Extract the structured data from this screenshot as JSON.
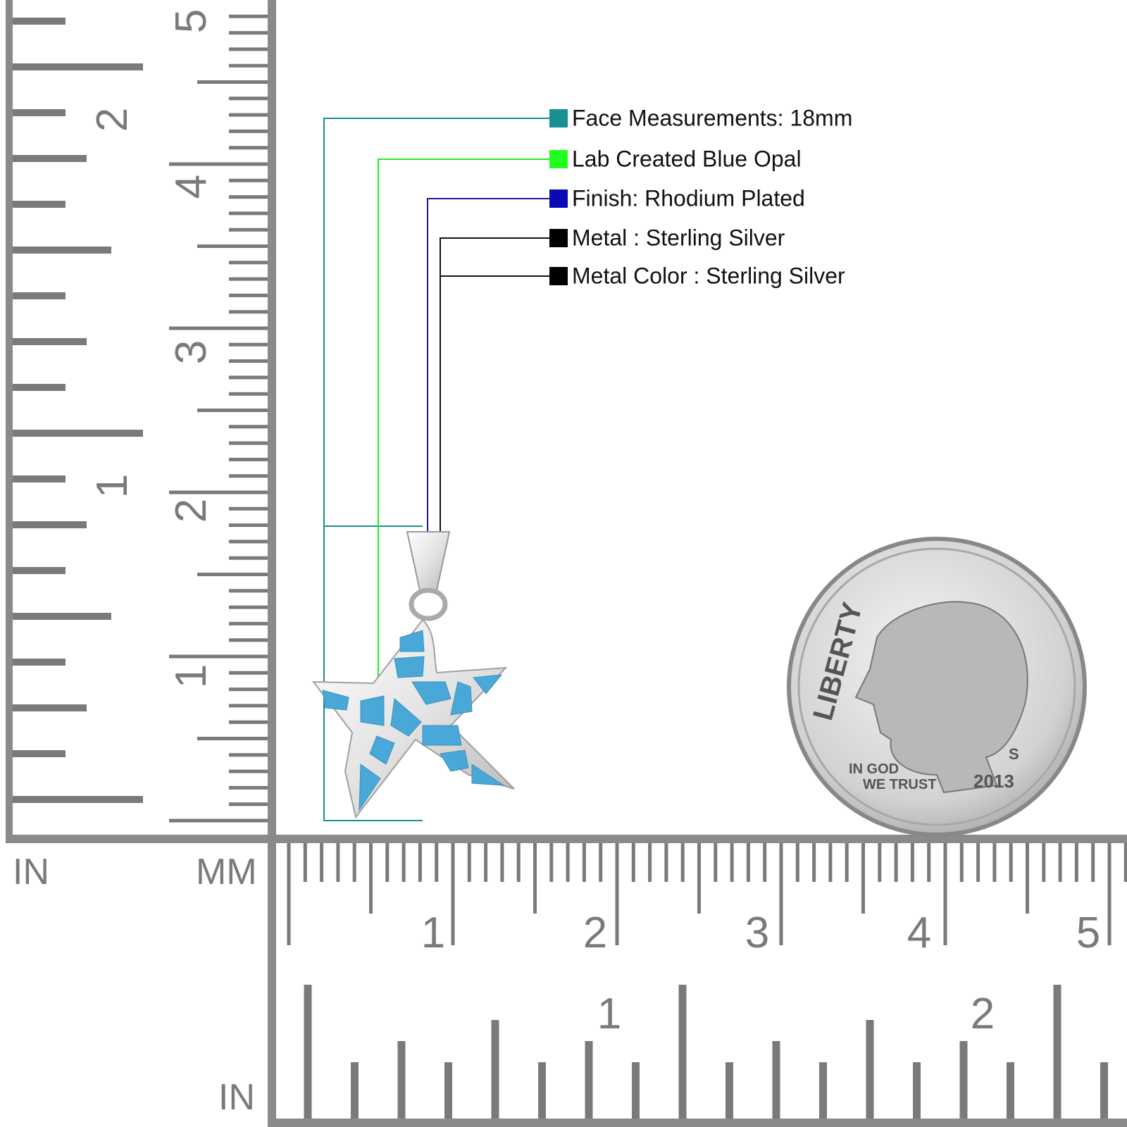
{
  "specs": [
    "Face Measurements: 18mm",
    "Lab Created Blue Opal",
    "Finish: Rhodium Plated",
    "Metal : Sterling Silver",
    "Metal Color : Sterling Silver"
  ],
  "ruler_left": {
    "inch_unit": "IN",
    "mm_unit": "MM",
    "inch_labels": [
      "1",
      "2"
    ],
    "cm_labels": [
      "1",
      "2",
      "3",
      "4",
      "5"
    ]
  },
  "ruler_bottom": {
    "inch_unit": "IN",
    "cm_labels": [
      "1",
      "2",
      "3",
      "4",
      "5"
    ],
    "inch_labels": [
      "1",
      "2"
    ]
  },
  "coin": {
    "legend": "LIBERTY",
    "motto_top": "IN GOD",
    "motto_bottom": "WE TRUST",
    "year": "2013",
    "mint_mark": "S"
  }
}
